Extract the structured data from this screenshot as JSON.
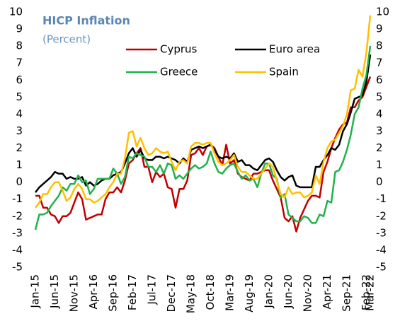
{
  "chart_data": {
    "type": "line",
    "title": "HICP Inflation",
    "subtitle": "(Percent)",
    "categories": [
      "Jan-15",
      null,
      null,
      null,
      null,
      "Jun-15",
      null,
      null,
      null,
      null,
      "Nov-15",
      null,
      null,
      null,
      null,
      "Apr-16",
      null,
      null,
      null,
      null,
      "Sep-16",
      null,
      null,
      null,
      null,
      "Feb-17",
      null,
      null,
      null,
      null,
      "Jul-17",
      null,
      null,
      null,
      null,
      "Dec-17",
      null,
      null,
      null,
      null,
      "May-18",
      null,
      null,
      null,
      null,
      "Oct-18",
      null,
      null,
      null,
      null,
      "Mar-19",
      null,
      null,
      null,
      null,
      "Aug-19",
      null,
      null,
      null,
      null,
      "Jan-20",
      null,
      null,
      null,
      null,
      "Jun-20",
      null,
      null,
      null,
      null,
      "Nov-20",
      null,
      null,
      null,
      null,
      "Apr-21",
      null,
      null,
      null,
      null,
      "Sep-21",
      null,
      null,
      null,
      null,
      "Feb-22",
      "Mar-22"
    ],
    "series": [
      {
        "name": "Cyprus",
        "color": "#c00000",
        "values": [
          -0.8,
          -0.8,
          -1.5,
          -1.5,
          -1.9,
          -2.0,
          -2.4,
          -2.0,
          -2.0,
          -1.8,
          -1.2,
          -0.6,
          -1.0,
          -2.2,
          -2.1,
          -2.0,
          -1.9,
          -1.9,
          -1.0,
          -0.6,
          -0.6,
          -0.3,
          -0.6,
          0.1,
          1.1,
          1.3,
          1.7,
          2.0,
          0.9,
          0.9,
          0.0,
          0.6,
          0.3,
          0.5,
          -0.3,
          -0.4,
          -1.5,
          -0.4,
          -0.4,
          0.1,
          1.6,
          1.7,
          2.0,
          1.6,
          2.1,
          2.2,
          2.0,
          1.5,
          1.0,
          2.2,
          1.1,
          1.3,
          0.5,
          0.3,
          0.2,
          0.1,
          0.5,
          0.5,
          0.6,
          0.7,
          0.7,
          0.1,
          -0.4,
          -0.9,
          -2.1,
          -2.3,
          -2.0,
          -2.9,
          -2.1,
          -1.6,
          -1.1,
          -0.8,
          -0.8,
          -0.9,
          0.6,
          1.2,
          2.0,
          2.6,
          3.1,
          3.4,
          3.5,
          4.4,
          4.4,
          4.8,
          5.0,
          5.6,
          6.2
        ]
      },
      {
        "name": "Euro area",
        "color": "#000000",
        "values": [
          -0.6,
          -0.3,
          -0.1,
          0.1,
          0.3,
          0.6,
          0.5,
          0.5,
          0.2,
          0.3,
          0.2,
          0.2,
          0.3,
          -0.2,
          0.0,
          -0.2,
          -0.1,
          0.1,
          0.2,
          0.2,
          0.4,
          0.5,
          0.6,
          1.1,
          1.7,
          2.0,
          1.5,
          1.9,
          1.4,
          1.3,
          1.3,
          1.5,
          1.5,
          1.4,
          1.5,
          1.4,
          1.3,
          1.1,
          1.4,
          1.2,
          1.9,
          2.0,
          2.1,
          2.0,
          2.1,
          2.2,
          1.9,
          1.5,
          1.4,
          1.5,
          1.4,
          1.7,
          1.2,
          1.3,
          1.0,
          1.0,
          0.8,
          0.7,
          1.0,
          1.3,
          1.4,
          1.2,
          0.7,
          0.3,
          0.1,
          0.3,
          0.4,
          -0.2,
          -0.3,
          -0.3,
          -0.3,
          -0.3,
          0.9,
          0.9,
          1.3,
          1.6,
          2.0,
          1.9,
          2.2,
          3.0,
          3.4,
          4.1,
          4.9,
          5.0,
          5.1,
          5.9,
          7.5
        ]
      },
      {
        "name": "Greece",
        "color": "#22b14c",
        "values": [
          -2.8,
          -1.9,
          -1.9,
          -1.8,
          -1.4,
          -1.1,
          -0.8,
          -0.3,
          -0.5,
          -0.1,
          -0.1,
          0.4,
          0.0,
          0.1,
          -0.7,
          -0.4,
          0.2,
          0.2,
          0.2,
          0.2,
          0.8,
          0.5,
          -0.1,
          0.3,
          1.5,
          1.4,
          1.7,
          1.6,
          1.5,
          0.9,
          0.9,
          0.6,
          1.0,
          0.5,
          1.1,
          1.0,
          0.2,
          0.4,
          0.2,
          0.5,
          0.8,
          1.0,
          0.8,
          0.9,
          1.1,
          1.8,
          1.1,
          0.6,
          0.5,
          0.8,
          1.0,
          1.1,
          0.6,
          0.2,
          0.4,
          0.1,
          0.2,
          -0.3,
          0.5,
          1.1,
          1.1,
          0.4,
          0.2,
          -0.9,
          -0.7,
          -1.9,
          -2.1,
          -2.3,
          -2.3,
          -2.0,
          -2.1,
          -2.4,
          -2.4,
          -1.9,
          -2.0,
          -1.1,
          -1.2,
          0.6,
          0.7,
          1.2,
          1.9,
          2.8,
          4.0,
          4.4,
          5.5,
          6.3,
          8.0
        ]
      },
      {
        "name": "Spain",
        "color": "#ffc000",
        "values": [
          -1.5,
          -1.2,
          -0.7,
          -0.7,
          -0.3,
          0.0,
          0.0,
          -0.5,
          -1.1,
          -0.9,
          -0.4,
          -0.1,
          -0.4,
          -1.0,
          -1.0,
          -1.2,
          -1.1,
          -0.9,
          -0.7,
          -0.3,
          0.0,
          0.5,
          0.5,
          1.4,
          2.9,
          3.0,
          2.1,
          2.6,
          2.0,
          1.6,
          1.7,
          2.0,
          1.8,
          1.7,
          1.8,
          1.2,
          0.7,
          1.2,
          1.3,
          1.1,
          2.1,
          2.3,
          2.3,
          2.2,
          2.3,
          2.3,
          1.7,
          1.2,
          1.0,
          1.1,
          1.3,
          1.6,
          0.9,
          0.6,
          0.6,
          0.4,
          0.2,
          0.2,
          0.5,
          0.8,
          1.1,
          0.9,
          0.1,
          -0.7,
          -0.9,
          -0.3,
          -0.7,
          -0.6,
          -0.6,
          -0.9,
          -0.8,
          -0.6,
          0.4,
          -0.1,
          1.2,
          2.0,
          2.4,
          2.5,
          2.9,
          3.3,
          4.0,
          5.4,
          5.5,
          6.6,
          6.2,
          7.6,
          9.8
        ]
      }
    ],
    "ylim": [
      -5,
      10
    ],
    "yticks": [
      -5,
      -4,
      -3,
      -2,
      -1,
      0,
      1,
      2,
      3,
      4,
      5,
      6,
      7,
      8,
      9,
      10
    ],
    "y2lim": [
      -5,
      10
    ],
    "y2ticks": [
      -5,
      -4,
      -3,
      -2,
      -1,
      0,
      1,
      2,
      3,
      4,
      5,
      6,
      7,
      8,
      9,
      10
    ]
  }
}
